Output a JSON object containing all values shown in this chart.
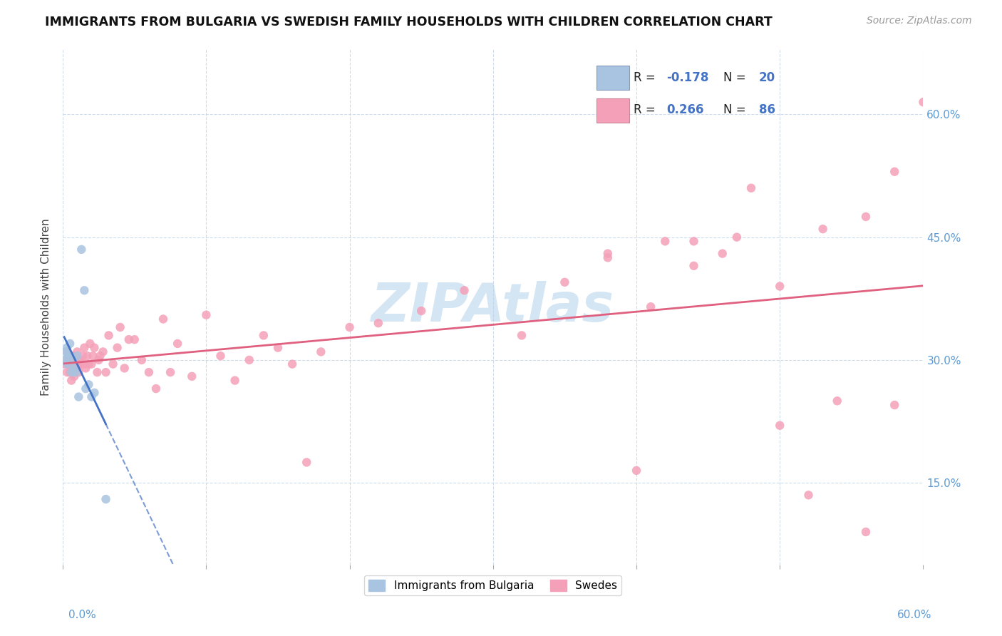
{
  "title": "IMMIGRANTS FROM BULGARIA VS SWEDISH FAMILY HOUSEHOLDS WITH CHILDREN CORRELATION CHART",
  "source": "Source: ZipAtlas.com",
  "ylabel": "Family Households with Children",
  "right_yticks": [
    0.15,
    0.3,
    0.45,
    0.6
  ],
  "right_yticklabels": [
    "15.0%",
    "30.0%",
    "45.0%",
    "60.0%"
  ],
  "xlim": [
    0.0,
    0.6
  ],
  "ylim": [
    0.05,
    0.68
  ],
  "blue_color": "#a8c4e0",
  "blue_line_color": "#4472c4",
  "pink_color": "#f4a0b8",
  "pink_line_color": "#e06080",
  "watermark": "ZIPAtlas",
  "watermark_color": "#b8d4ee",
  "blue_x": [
    0.001,
    0.002,
    0.003,
    0.003,
    0.004,
    0.005,
    0.005,
    0.006,
    0.007,
    0.008,
    0.009,
    0.01,
    0.011,
    0.013,
    0.015,
    0.016,
    0.018,
    0.02,
    0.022,
    0.03
  ],
  "blue_y": [
    0.3,
    0.31,
    0.295,
    0.315,
    0.305,
    0.305,
    0.32,
    0.285,
    0.3,
    0.29,
    0.285,
    0.305,
    0.255,
    0.435,
    0.385,
    0.265,
    0.27,
    0.255,
    0.26,
    0.13
  ],
  "pink_x": [
    0.001,
    0.002,
    0.003,
    0.003,
    0.004,
    0.004,
    0.005,
    0.005,
    0.006,
    0.006,
    0.007,
    0.007,
    0.008,
    0.008,
    0.009,
    0.01,
    0.01,
    0.011,
    0.011,
    0.012,
    0.012,
    0.013,
    0.014,
    0.015,
    0.015,
    0.016,
    0.017,
    0.018,
    0.019,
    0.02,
    0.021,
    0.022,
    0.024,
    0.025,
    0.026,
    0.028,
    0.03,
    0.032,
    0.035,
    0.038,
    0.04,
    0.043,
    0.046,
    0.05,
    0.055,
    0.06,
    0.065,
    0.07,
    0.075,
    0.08,
    0.09,
    0.1,
    0.11,
    0.12,
    0.13,
    0.14,
    0.15,
    0.16,
    0.17,
    0.18,
    0.2,
    0.22,
    0.25,
    0.28,
    0.32,
    0.35,
    0.38,
    0.41,
    0.44,
    0.47,
    0.5,
    0.53,
    0.56,
    0.58,
    0.6,
    0.58,
    0.56,
    0.54,
    0.52,
    0.5,
    0.48,
    0.46,
    0.44,
    0.42,
    0.4,
    0.38
  ],
  "pink_y": [
    0.295,
    0.3,
    0.31,
    0.285,
    0.295,
    0.305,
    0.285,
    0.3,
    0.295,
    0.275,
    0.305,
    0.285,
    0.3,
    0.28,
    0.295,
    0.29,
    0.31,
    0.295,
    0.285,
    0.3,
    0.295,
    0.295,
    0.305,
    0.295,
    0.315,
    0.29,
    0.305,
    0.295,
    0.32,
    0.295,
    0.305,
    0.315,
    0.285,
    0.3,
    0.305,
    0.31,
    0.285,
    0.33,
    0.295,
    0.315,
    0.34,
    0.29,
    0.325,
    0.325,
    0.3,
    0.285,
    0.265,
    0.35,
    0.285,
    0.32,
    0.28,
    0.355,
    0.305,
    0.275,
    0.3,
    0.33,
    0.315,
    0.295,
    0.175,
    0.31,
    0.34,
    0.345,
    0.36,
    0.385,
    0.33,
    0.395,
    0.43,
    0.365,
    0.415,
    0.45,
    0.39,
    0.46,
    0.475,
    0.53,
    0.615,
    0.245,
    0.09,
    0.25,
    0.135,
    0.22,
    0.51,
    0.43,
    0.445,
    0.445,
    0.165,
    0.425
  ]
}
